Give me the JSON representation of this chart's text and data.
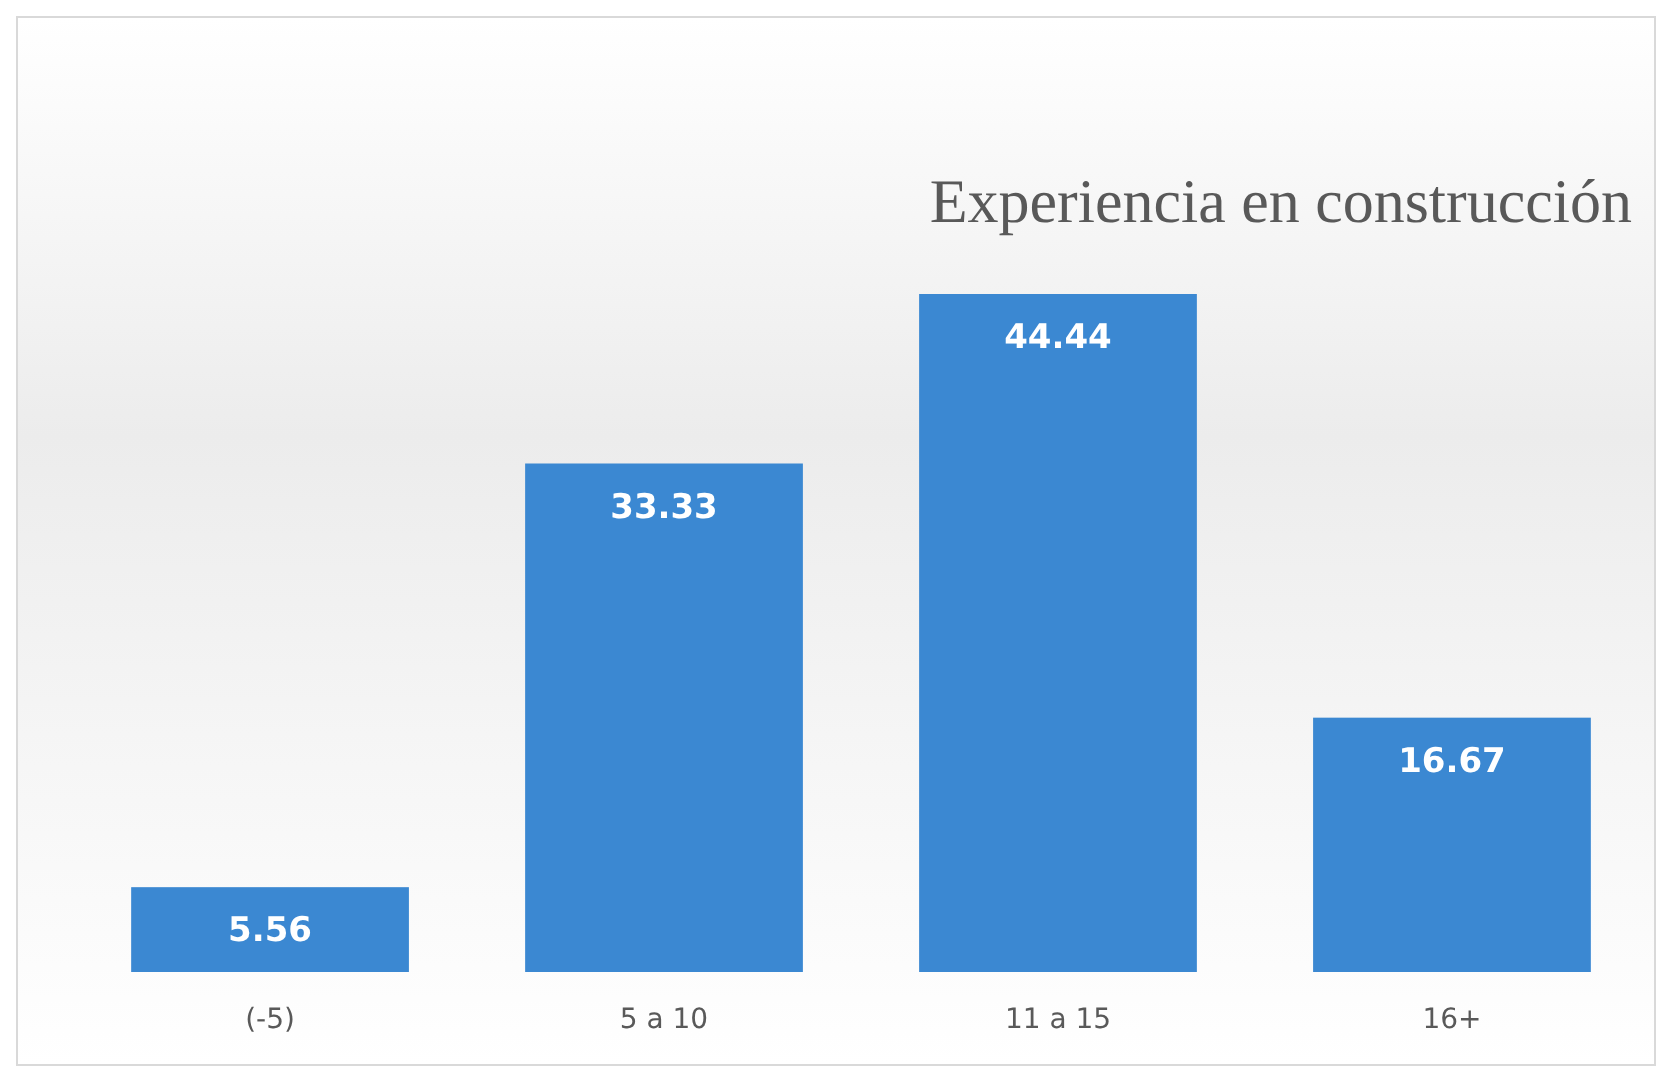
{
  "chart_data": {
    "type": "bar",
    "title": "Experiencia  en construcción",
    "categories": [
      "(-5)",
      "5 a 10",
      "11 a 15",
      "16+"
    ],
    "values": [
      5.56,
      33.33,
      44.44,
      16.67
    ],
    "color": "#3b88d2",
    "data_labels": true
  }
}
